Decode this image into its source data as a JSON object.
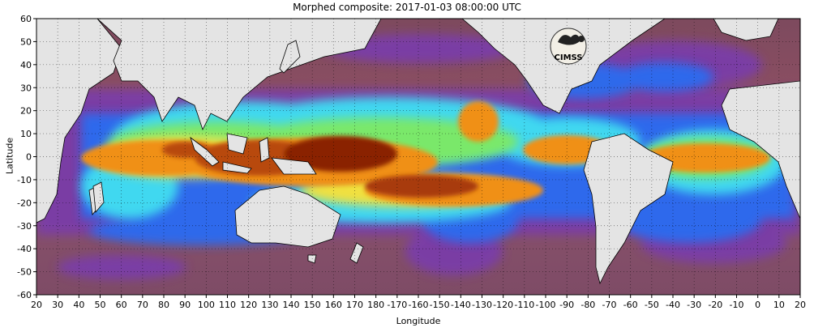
{
  "title": "Morphed composite: 2017-01-03 08:00:00 UTC",
  "axes": {
    "xlabel": "Longitude",
    "ylabel": "Latitude",
    "x_ticks": [
      "20",
      "30",
      "40",
      "50",
      "60",
      "70",
      "80",
      "90",
      "100",
      "110",
      "120",
      "130",
      "140",
      "150",
      "160",
      "170",
      "180",
      "-170",
      "-160",
      "-150",
      "-140",
      "-130",
      "-120",
      "-110",
      "-100",
      "-90",
      "-80",
      "-70",
      "-60",
      "-50",
      "-40",
      "-30",
      "-20",
      "-10",
      "0",
      "10",
      "20"
    ],
    "y_ticks": [
      "60",
      "50",
      "40",
      "30",
      "20",
      "10",
      "0",
      "-10",
      "-20",
      "-30",
      "-40",
      "-50",
      "-60"
    ]
  },
  "logo": {
    "text": "CIMSS"
  },
  "colors": {
    "land": "#e4e4e4",
    "dry_ocean": "#8b4f5a",
    "moist_purple": "#7a3ea8",
    "blue": "#2a6cf0",
    "cyan": "#40d8f0",
    "green": "#7ae86a",
    "yellow": "#f0e040",
    "orange": "#f09018",
    "dark_red": "#8a2200"
  }
}
